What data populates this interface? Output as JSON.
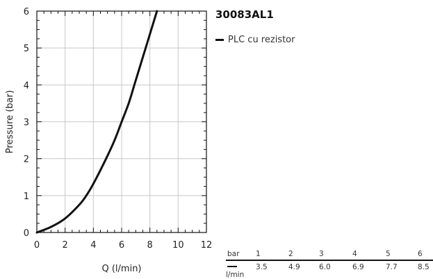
{
  "chart_data": {
    "type": "line",
    "title": "30083AL1",
    "xlabel": "Q (l/min)",
    "ylabel": "Pressure (bar)",
    "xlim": [
      0,
      12
    ],
    "ylim": [
      0,
      6
    ],
    "x_ticks": [
      "0",
      "2",
      "4",
      "6",
      "8",
      "10",
      "12"
    ],
    "y_ticks": [
      "0",
      "1",
      "2",
      "3",
      "4",
      "5",
      "6"
    ],
    "grid": true,
    "legend_position": "right",
    "series": [
      {
        "name": "PLC cu rezistor",
        "color": "#111111",
        "x": [
          0,
          1.0,
          2.0,
          3.0,
          3.5,
          4.0,
          4.9,
          5.5,
          6.0,
          6.5,
          6.9,
          7.3,
          7.7,
          8.1,
          8.5
        ],
        "y": [
          0,
          0.15,
          0.38,
          0.75,
          1.0,
          1.32,
          2.0,
          2.5,
          3.0,
          3.5,
          4.0,
          4.5,
          5.0,
          5.5,
          6.0
        ]
      }
    ]
  },
  "table": {
    "pressure_label": "bar",
    "flow_label": "l/min",
    "pressures": [
      "1",
      "2",
      "3",
      "4",
      "5",
      "6"
    ],
    "flows": [
      "3.5",
      "4.9",
      "6.0",
      "6.9",
      "7.7",
      "8.5"
    ]
  }
}
